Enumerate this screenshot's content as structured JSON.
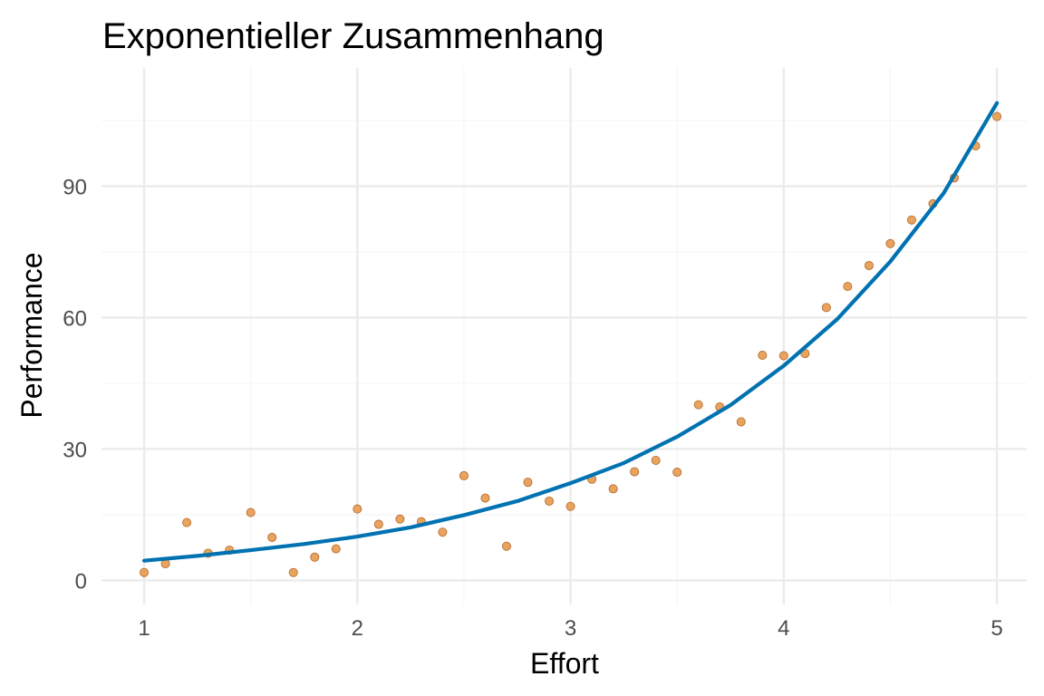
{
  "chart_data": {
    "type": "scatter",
    "title": "Exponentieller Zusammenhang",
    "xlabel": "Effort",
    "ylabel": "Performance",
    "xlim": [
      0.8,
      5.14
    ],
    "ylim": [
      -5.5,
      117
    ],
    "x_ticks": [
      1,
      2,
      3,
      4,
      5
    ],
    "y_ticks": [
      0,
      30,
      60,
      90
    ],
    "grid": true,
    "legend": "none",
    "colors": {
      "points": "#E69F55",
      "point_outline": "#B8652A",
      "line": "#0072B2",
      "grid_major": "#EBEBEB",
      "grid_minor": "#F5F5F5"
    },
    "series": [
      {
        "type": "scatter",
        "x": [
          1.0,
          1.1,
          1.2,
          1.3,
          1.4,
          1.5,
          1.6,
          1.7,
          1.8,
          1.9,
          2.0,
          2.1,
          2.2,
          2.3,
          2.4,
          2.5,
          2.6,
          2.7,
          2.8,
          2.9,
          3.0,
          3.1,
          3.2,
          3.3,
          3.4,
          3.5,
          3.6,
          3.7,
          3.8,
          3.9,
          4.0,
          4.1,
          4.2,
          4.3,
          4.4,
          4.5,
          4.6,
          4.7,
          4.8,
          4.9,
          5.0
        ],
        "y": [
          1.8,
          3.8,
          13.2,
          6.2,
          6.9,
          15.5,
          9.8,
          1.8,
          5.3,
          7.2,
          16.3,
          12.8,
          14.0,
          13.4,
          11.0,
          23.9,
          18.8,
          7.8,
          22.4,
          18.1,
          16.9,
          23.1,
          20.9,
          24.8,
          27.4,
          24.7,
          40.1,
          39.6,
          36.2,
          51.4,
          51.3,
          51.8,
          62.3,
          67.1,
          71.9,
          76.9,
          82.3,
          86.0,
          91.9,
          99.2,
          105.9
        ]
      },
      {
        "type": "line",
        "x": [
          1.0,
          1.25,
          1.5,
          1.75,
          2.0,
          2.25,
          2.5,
          2.75,
          3.0,
          3.25,
          3.5,
          3.75,
          4.0,
          4.25,
          4.5,
          4.75,
          5.0
        ],
        "y": [
          4.5,
          5.6,
          6.9,
          8.3,
          10.0,
          12.1,
          14.9,
          18.1,
          22.2,
          26.8,
          32.8,
          40.0,
          49.0,
          59.6,
          72.8,
          88.4,
          109.0
        ]
      }
    ]
  }
}
